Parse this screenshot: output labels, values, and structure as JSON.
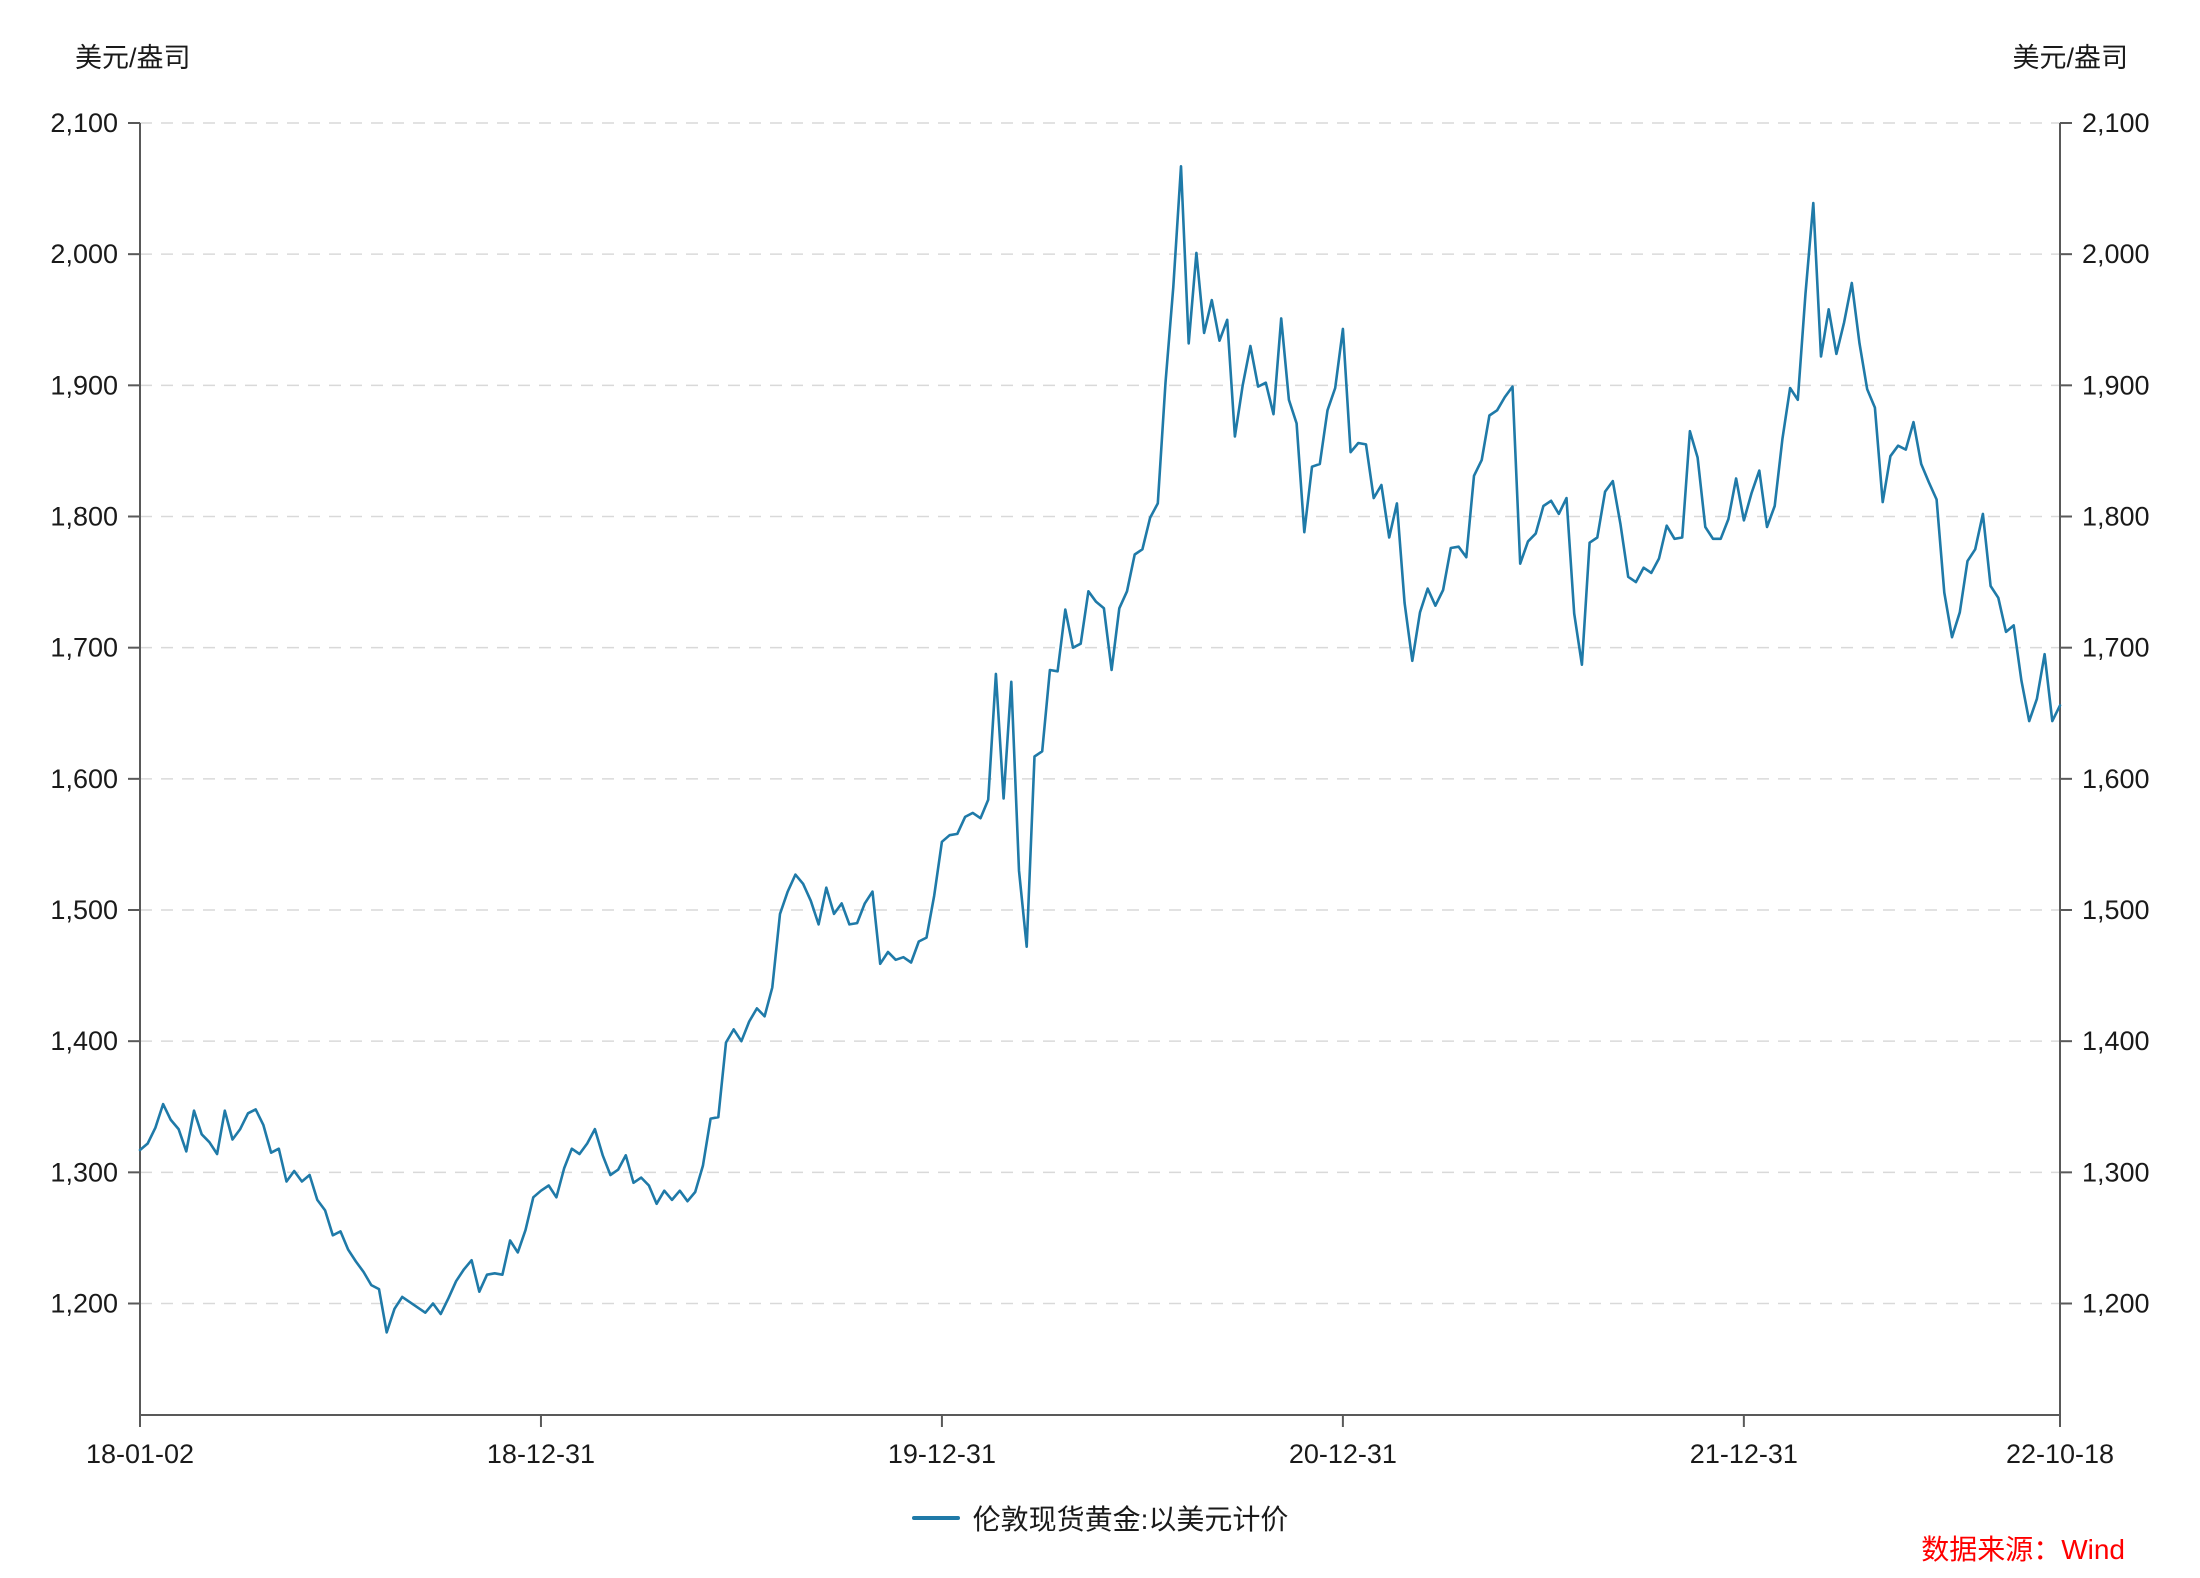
{
  "chart_data": {
    "type": "line",
    "title": "",
    "unit_label_left": "美元/盎司",
    "unit_label_right": "美元/盎司",
    "source_note": "数据来源：Wind",
    "grid": "horizontal-dashed",
    "legend_position": "bottom-center",
    "ylim": [
      1115,
      2100
    ],
    "y_ticks": [
      {
        "value": 1200,
        "label": "1,200"
      },
      {
        "value": 1300,
        "label": "1,300"
      },
      {
        "value": 1400,
        "label": "1,400"
      },
      {
        "value": 1500,
        "label": "1,500"
      },
      {
        "value": 1600,
        "label": "1,600"
      },
      {
        "value": 1700,
        "label": "1,700"
      },
      {
        "value": 1800,
        "label": "1,800"
      },
      {
        "value": 1900,
        "label": "1,900"
      },
      {
        "value": 2000,
        "label": "2,000"
      },
      {
        "value": 2100,
        "label": "2,100"
      }
    ],
    "x_ticks": [
      {
        "index": 0,
        "label": "18-01-02"
      },
      {
        "index": 52,
        "label": "18-12-31"
      },
      {
        "index": 104,
        "label": "19-12-31"
      },
      {
        "index": 156,
        "label": "20-12-31"
      },
      {
        "index": 208,
        "label": "21-12-31"
      },
      {
        "index": 249,
        "label": "22-10-18"
      }
    ],
    "legend": [
      {
        "name": "伦敦现货黄金:以美元计价",
        "color": "#1f7aa8"
      }
    ],
    "series": [
      {
        "name": "伦敦现货黄金:以美元计价",
        "color": "#1f7aa8",
        "sampling": "weekly-approximation",
        "x_range": [
          "18-01-02",
          "22-10-18"
        ],
        "values": [
          1317,
          1322,
          1334,
          1352,
          1340,
          1333,
          1316,
          1347,
          1329,
          1323,
          1314,
          1347,
          1325,
          1333,
          1345,
          1348,
          1336,
          1315,
          1318,
          1293,
          1301,
          1293,
          1298,
          1279,
          1271,
          1252,
          1255,
          1241,
          1232,
          1224,
          1214,
          1211,
          1178,
          1196,
          1205,
          1201,
          1197,
          1193,
          1200,
          1192,
          1204,
          1217,
          1226,
          1233,
          1209,
          1222,
          1223,
          1222,
          1248,
          1239,
          1256,
          1281,
          1286,
          1290,
          1281,
          1303,
          1318,
          1314,
          1322,
          1333,
          1313,
          1298,
          1302,
          1313,
          1292,
          1296,
          1290,
          1276,
          1286,
          1279,
          1286,
          1278,
          1285,
          1305,
          1341,
          1342,
          1399,
          1409,
          1400,
          1415,
          1425,
          1419,
          1441,
          1497,
          1514,
          1527,
          1520,
          1507,
          1489,
          1517,
          1497,
          1505,
          1489,
          1490,
          1505,
          1514,
          1459,
          1468,
          1462,
          1464,
          1460,
          1476,
          1479,
          1511,
          1552,
          1557,
          1558,
          1571,
          1574,
          1570,
          1584,
          1680,
          1585,
          1674,
          1530,
          1472,
          1617,
          1621,
          1683,
          1682,
          1729,
          1700,
          1703,
          1743,
          1735,
          1730,
          1683,
          1730,
          1743,
          1771,
          1775,
          1799,
          1810,
          1902,
          1975,
          2067,
          1932,
          2001,
          1940,
          1965,
          1934,
          1950,
          1861,
          1900,
          1930,
          1899,
          1902,
          1878,
          1951,
          1889,
          1871,
          1788,
          1838,
          1840,
          1881,
          1898,
          1943,
          1849,
          1856,
          1855,
          1814,
          1824,
          1784,
          1810,
          1734,
          1690,
          1727,
          1745,
          1732,
          1744,
          1776,
          1777,
          1769,
          1831,
          1843,
          1877,
          1881,
          1891,
          1899,
          1764,
          1781,
          1787,
          1808,
          1812,
          1802,
          1814,
          1726,
          1687,
          1780,
          1784,
          1819,
          1827,
          1794,
          1754,
          1750,
          1761,
          1757,
          1768,
          1793,
          1783,
          1784,
          1865,
          1845,
          1792,
          1783,
          1783,
          1798,
          1829,
          1797,
          1818,
          1835,
          1792,
          1808,
          1859,
          1898,
          1889,
          1970,
          2039,
          1922,
          1958,
          1924,
          1948,
          1978,
          1932,
          1897,
          1883,
          1811,
          1846,
          1854,
          1851,
          1872,
          1840,
          1826,
          1813,
          1742,
          1708,
          1727,
          1766,
          1775,
          1802,
          1747,
          1738,
          1712,
          1717,
          1675,
          1644,
          1661,
          1695,
          1644,
          1656
        ]
      }
    ],
    "colors": {
      "line": "#1f7aa8",
      "grid": "#d9d9d9",
      "axis": "#595959",
      "text": "#1a1a1a",
      "source": "#ff0000",
      "background": "#ffffff"
    }
  }
}
